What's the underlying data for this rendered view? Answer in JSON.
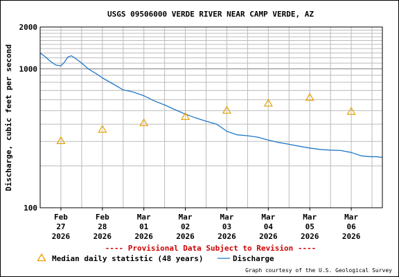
{
  "chart_data": {
    "type": "line",
    "title": "USGS 09506000 VERDE RIVER NEAR CAMP VERDE, AZ",
    "ylabel": "Discharge, cubic feet per second",
    "y_scale": "log",
    "ylim": [
      100,
      2000
    ],
    "y_ticks": [
      "2000",
      "1000",
      "100"
    ],
    "xlim": [
      "2026-02-26T12:00",
      "2026-03-06T18:00"
    ],
    "x_ticks": [
      {
        "date": "2026-02-27",
        "label": [
          "Feb",
          "27",
          "2026"
        ]
      },
      {
        "date": "2026-02-28",
        "label": [
          "Feb",
          "28",
          "2026"
        ]
      },
      {
        "date": "2026-03-01",
        "label": [
          "Mar",
          "01",
          "2026"
        ]
      },
      {
        "date": "2026-03-02",
        "label": [
          "Mar",
          "02",
          "2026"
        ]
      },
      {
        "date": "2026-03-03",
        "label": [
          "Mar",
          "03",
          "2026"
        ]
      },
      {
        "date": "2026-03-04",
        "label": [
          "Mar",
          "04",
          "2026"
        ]
      },
      {
        "date": "2026-03-05",
        "label": [
          "Mar",
          "05",
          "2026"
        ]
      },
      {
        "date": "2026-03-06",
        "label": [
          "Mar",
          "06",
          "2026"
        ]
      }
    ],
    "grid": true,
    "legend_position": "bottom",
    "series": [
      {
        "name": "Discharge",
        "kind": "line",
        "color": "#1f77c9",
        "points": [
          [
            "2026-02-26T12:00",
            1300
          ],
          [
            "2026-02-26T15:00",
            1220
          ],
          [
            "2026-02-26T18:00",
            1130
          ],
          [
            "2026-02-26T21:00",
            1065
          ],
          [
            "2026-02-27T00:00",
            1050
          ],
          [
            "2026-02-27T02:00",
            1115
          ],
          [
            "2026-02-27T04:00",
            1215
          ],
          [
            "2026-02-27T06:00",
            1240
          ],
          [
            "2026-02-27T08:00",
            1200
          ],
          [
            "2026-02-27T12:00",
            1100
          ],
          [
            "2026-02-27T16:00",
            995
          ],
          [
            "2026-02-27T20:00",
            930
          ],
          [
            "2026-02-28T00:00",
            860
          ],
          [
            "2026-02-28T06:00",
            780
          ],
          [
            "2026-02-28T12:00",
            705
          ],
          [
            "2026-02-28T18:00",
            680
          ],
          [
            "2026-03-01T00:00",
            640
          ],
          [
            "2026-03-01T06:00",
            588
          ],
          [
            "2026-03-01T12:00",
            550
          ],
          [
            "2026-03-01T18:00",
            508
          ],
          [
            "2026-03-02T00:00",
            472
          ],
          [
            "2026-03-02T06:00",
            443
          ],
          [
            "2026-03-02T12:00",
            420
          ],
          [
            "2026-03-02T18:00",
            400
          ],
          [
            "2026-03-03T00:00",
            355
          ],
          [
            "2026-03-03T06:00",
            335
          ],
          [
            "2026-03-03T12:00",
            330
          ],
          [
            "2026-03-03T18:00",
            322
          ],
          [
            "2026-03-04T00:00",
            307
          ],
          [
            "2026-03-04T06:00",
            295
          ],
          [
            "2026-03-04T12:00",
            286
          ],
          [
            "2026-03-04T18:00",
            277
          ],
          [
            "2026-03-05T00:00",
            269
          ],
          [
            "2026-03-05T06:00",
            263
          ],
          [
            "2026-03-05T12:00",
            260
          ],
          [
            "2026-03-05T18:00",
            258
          ],
          [
            "2026-03-06T00:00",
            250
          ],
          [
            "2026-03-06T06:00",
            236
          ],
          [
            "2026-03-06T12:00",
            233
          ],
          [
            "2026-03-06T15:00",
            233
          ],
          [
            "2026-03-06T18:00",
            230
          ]
        ]
      },
      {
        "name": "Median daily statistic (48 years)",
        "kind": "marker",
        "marker": "triangle",
        "color": "#e6a000",
        "points": [
          [
            "2026-02-27T00:00",
            305
          ],
          [
            "2026-02-28T00:00",
            368
          ],
          [
            "2026-03-01T00:00",
            410
          ],
          [
            "2026-03-02T00:00",
            455
          ],
          [
            "2026-03-03T00:00",
            505
          ],
          [
            "2026-03-04T00:00",
            568
          ],
          [
            "2026-03-05T00:00",
            625
          ],
          [
            "2026-03-06T00:00",
            495
          ]
        ]
      }
    ]
  },
  "notice": "---- Provisional Data Subject to Revision ----",
  "credit": "Graph courtesy of the U.S. Geological Survey",
  "colors": {
    "notice": "#cc0000",
    "grid": "#bbbbbb",
    "axis": "#000000"
  }
}
